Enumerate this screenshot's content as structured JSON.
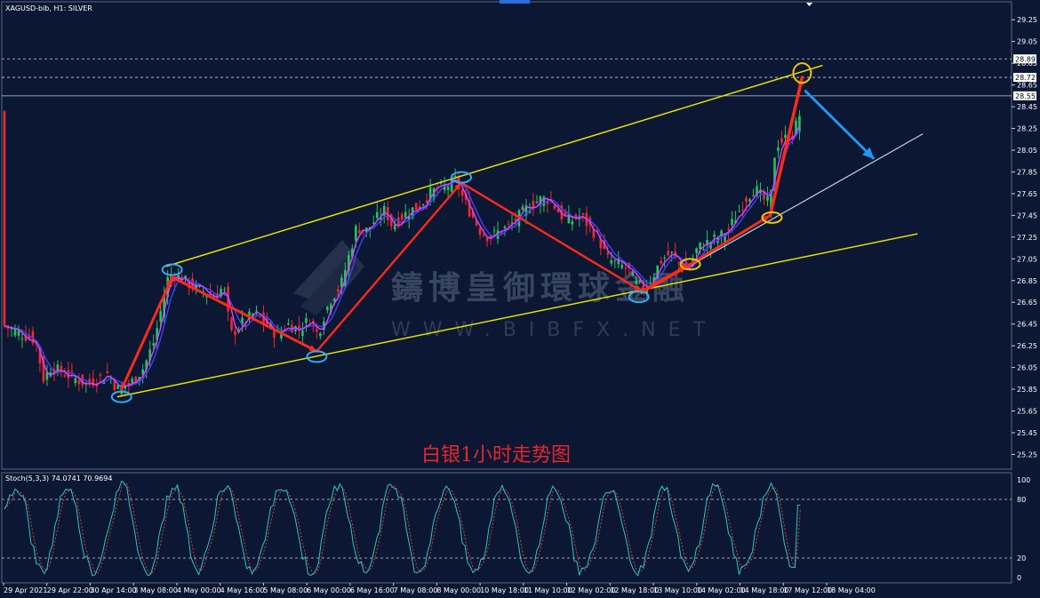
{
  "symbol_label": "XAGUSD-bib, H1:  SILVER",
  "stoch_label": "Stoch(5,3,3) 74.0741 70.9694",
  "watermark_title": "鑄博皇御環球金融",
  "watermark_url": "WWW.BIBFX.NET",
  "caption": "白银1小时走势图",
  "colors": {
    "background": "#0b1733",
    "bull": "#22c55e",
    "bear": "#ef2a2a",
    "ma_blue": "#3b43ff",
    "ma_magenta": "#e040fb",
    "channel": "#e8e000",
    "trend_red": "#ff2a1a",
    "arrow_blue": "#2196f3",
    "support_light": "#b3d9f2",
    "stoch_main": "#2bc6c6",
    "stoch_signal": "#e53935"
  },
  "price_axis": {
    "ticks": [
      "29.25",
      "29.05",
      "28.85",
      "28.65",
      "28.45",
      "28.25",
      "28.05",
      "27.85",
      "27.65",
      "27.45",
      "27.25",
      "27.05",
      "26.85",
      "26.65",
      "26.45",
      "26.25",
      "26.05",
      "25.85",
      "25.65",
      "25.45",
      "25.25"
    ],
    "marked": [
      "28.89",
      "28.72",
      "28.55"
    ]
  },
  "stoch_axis": {
    "ticks": [
      "100",
      "80",
      "20",
      "0"
    ]
  },
  "time_axis": {
    "labels": [
      "29 Apr 2021",
      "29 Apr 22:00",
      "30 Apr 14:00",
      "3 May 08:00",
      "4 May 00:00",
      "4 May 16:00",
      "5 May 08:00",
      "6 May 00:00",
      "6 May 16:00",
      "7 May 08:00",
      "8 May 00:00",
      "10 May 18:00",
      "11 May 10:00",
      "12 May 02:00",
      "12 May 18:00",
      "13 May 10:00",
      "14 May 02:00",
      "14 May 18:00",
      "17 May 12:00",
      "18 May 04:00"
    ]
  },
  "chart_data": {
    "type": "candlestick",
    "instrument": "XAGUSD-bib",
    "timeframe": "H1",
    "ylim": [
      25.18,
      29.35
    ],
    "price_path": [
      [
        0,
        26.45
      ],
      [
        10,
        26.4
      ],
      [
        25,
        26.35
      ],
      [
        38,
        26.3
      ],
      [
        47,
        25.95
      ],
      [
        55,
        26.05
      ],
      [
        70,
        26.0
      ],
      [
        82,
        25.95
      ],
      [
        95,
        25.9
      ],
      [
        110,
        25.95
      ],
      [
        120,
        26.0
      ],
      [
        130,
        25.85
      ],
      [
        145,
        25.9
      ],
      [
        160,
        26.05
      ],
      [
        172,
        26.3
      ],
      [
        180,
        26.6
      ],
      [
        188,
        26.9
      ],
      [
        196,
        26.9
      ],
      [
        205,
        26.85
      ],
      [
        215,
        26.8
      ],
      [
        228,
        26.75
      ],
      [
        240,
        26.7
      ],
      [
        250,
        26.8
      ],
      [
        258,
        26.35
      ],
      [
        270,
        26.45
      ],
      [
        285,
        26.55
      ],
      [
        298,
        26.45
      ],
      [
        310,
        26.35
      ],
      [
        322,
        26.45
      ],
      [
        335,
        26.4
      ],
      [
        348,
        26.5
      ],
      [
        356,
        26.35
      ],
      [
        364,
        26.55
      ],
      [
        372,
        26.7
      ],
      [
        382,
        26.8
      ],
      [
        392,
        27.1
      ],
      [
        400,
        27.35
      ],
      [
        410,
        27.3
      ],
      [
        420,
        27.4
      ],
      [
        432,
        27.5
      ],
      [
        440,
        27.35
      ],
      [
        452,
        27.45
      ],
      [
        462,
        27.5
      ],
      [
        472,
        27.55
      ],
      [
        482,
        27.65
      ],
      [
        492,
        27.7
      ],
      [
        502,
        27.72
      ],
      [
        512,
        27.78
      ],
      [
        520,
        27.6
      ],
      [
        530,
        27.45
      ],
      [
        540,
        27.3
      ],
      [
        550,
        27.25
      ],
      [
        560,
        27.3
      ],
      [
        572,
        27.35
      ],
      [
        584,
        27.45
      ],
      [
        596,
        27.55
      ],
      [
        608,
        27.6
      ],
      [
        618,
        27.6
      ],
      [
        630,
        27.45
      ],
      [
        642,
        27.4
      ],
      [
        652,
        27.45
      ],
      [
        662,
        27.35
      ],
      [
        672,
        27.25
      ],
      [
        682,
        27.05
      ],
      [
        694,
        27.0
      ],
      [
        706,
        26.95
      ],
      [
        716,
        26.8
      ],
      [
        724,
        26.78
      ],
      [
        734,
        26.9
      ],
      [
        744,
        27.05
      ],
      [
        754,
        27.1
      ],
      [
        764,
        27.0
      ],
      [
        774,
        26.95
      ],
      [
        784,
        27.15
      ],
      [
        796,
        27.2
      ],
      [
        808,
        27.25
      ],
      [
        818,
        27.3
      ],
      [
        828,
        27.45
      ],
      [
        838,
        27.6
      ],
      [
        848,
        27.7
      ],
      [
        858,
        27.6
      ],
      [
        866,
        27.55
      ],
      [
        872,
        28.1
      ],
      [
        882,
        28.15
      ],
      [
        892,
        28.2
      ],
      [
        900,
        28.4
      ]
    ],
    "red_swing_path": [
      [
        135,
        25.85
      ],
      [
        192,
        26.88
      ],
      [
        355,
        26.2
      ],
      [
        518,
        27.75
      ],
      [
        722,
        26.75
      ],
      [
        772,
        26.98
      ],
      [
        866,
        27.45
      ],
      [
        902,
        28.72
      ]
    ],
    "swing_markers": [
      {
        "x": 135,
        "price": 25.78,
        "color": "blue"
      },
      {
        "x": 192,
        "price": 26.95,
        "color": "blue"
      },
      {
        "x": 355,
        "price": 26.15,
        "color": "blue"
      },
      {
        "x": 518,
        "price": 27.8,
        "color": "blue"
      },
      {
        "x": 718,
        "price": 26.7,
        "color": "blue"
      },
      {
        "x": 776,
        "price": 27.0,
        "color": "yellow"
      },
      {
        "x": 868,
        "price": 27.43,
        "color": "yellow"
      },
      {
        "x": 902,
        "price": 28.76,
        "color": "yellow"
      }
    ],
    "channel_upper": [
      [
        185,
        26.98
      ],
      [
        925,
        28.83
      ]
    ],
    "channel_lower": [
      [
        130,
        25.78
      ],
      [
        1032,
        27.28
      ]
    ],
    "support_line": [
      [
        720,
        26.73
      ],
      [
        1038,
        28.2
      ]
    ],
    "forecast_arrow": [
      [
        905,
        28.6
      ],
      [
        983,
        27.97
      ]
    ],
    "horizontal_levels": [
      {
        "price": 28.89,
        "style": "dashed"
      },
      {
        "price": 28.72,
        "style": "dashed"
      },
      {
        "price": 28.55,
        "style": "solid"
      }
    ],
    "stochastic": {
      "k": 5,
      "d": 3,
      "slowing": 3,
      "main_value": 74.0741,
      "signal_value": 70.9694,
      "levels": [
        80,
        20
      ],
      "ylim": [
        0,
        100
      ]
    }
  }
}
